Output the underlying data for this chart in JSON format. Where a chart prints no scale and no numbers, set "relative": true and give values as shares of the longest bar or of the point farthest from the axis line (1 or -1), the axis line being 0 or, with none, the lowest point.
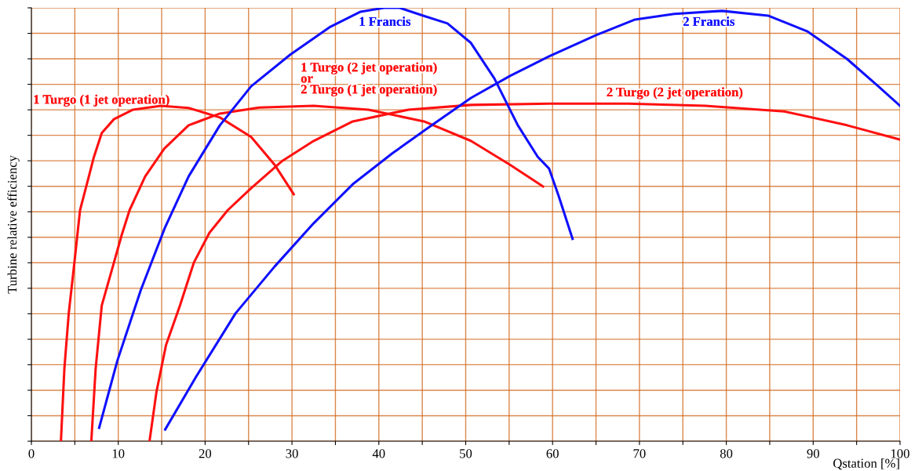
{
  "chart_data": {
    "type": "line",
    "relative": true,
    "xlabel": "Qstation [%]",
    "ylabel": "Turbine relative efficiency",
    "xlim": [
      0,
      100
    ],
    "xticks": [
      0,
      {
        "value": 5,
        "label": null
      },
      10,
      {
        "value": 15,
        "label": null
      },
      20,
      {
        "value": 25,
        "label": null
      },
      30,
      {
        "value": 35,
        "label": null
      },
      40,
      {
        "value": 45,
        "label": null
      },
      50,
      {
        "value": 55,
        "label": null
      },
      60,
      {
        "value": 65,
        "label": null
      },
      70,
      {
        "value": 75,
        "label": null
      },
      80,
      {
        "value": 85,
        "label": null
      },
      90,
      {
        "value": 95,
        "label": null
      },
      100
    ],
    "grid": true,
    "legend": false,
    "marker": "none",
    "line_style": "solid",
    "series": [
      {
        "name": "1 Turgo (1 jet operation)",
        "color": "#ff1010",
        "x": [
          3.4,
          3.8,
          4.3,
          5.0,
          5.6,
          6.5,
          7.2,
          8.1,
          9.5,
          11.7,
          14.9,
          18.1,
          21.7,
          25.3,
          28.0,
          30.2
        ],
        "values": [
          0,
          0.168,
          0.295,
          0.421,
          0.533,
          0.602,
          0.656,
          0.711,
          0.743,
          0.765,
          0.774,
          0.769,
          0.747,
          0.702,
          0.638,
          0.57
        ]
      },
      {
        "name": "1 Turgo (2 jet operation)\nor\n2 Turgo (1 jet operation)",
        "color": "#ff1010",
        "x": [
          6.9,
          7.4,
          8.1,
          9.5,
          10.4,
          11.3,
          13.1,
          15.3,
          18.1,
          21.7,
          26.2,
          32.5,
          38.8,
          45.2,
          50.6,
          55.1,
          58.9
        ],
        "values": [
          0,
          0.168,
          0.313,
          0.412,
          0.476,
          0.533,
          0.611,
          0.675,
          0.729,
          0.756,
          0.77,
          0.774,
          0.765,
          0.738,
          0.693,
          0.638,
          0.588
        ]
      },
      {
        "name": "2 Turgo (2 jet operation)",
        "color": "#ff1010",
        "x": [
          13.6,
          14.4,
          15.5,
          17.1,
          18.7,
          20.5,
          22.6,
          25.3,
          28.9,
          32.5,
          37.0,
          43.4,
          50.6,
          59.6,
          68.7,
          77.6,
          86.7,
          93.9,
          100
        ],
        "values": [
          0,
          0.114,
          0.222,
          0.313,
          0.412,
          0.481,
          0.533,
          0.584,
          0.647,
          0.693,
          0.738,
          0.765,
          0.776,
          0.779,
          0.779,
          0.774,
          0.761,
          0.729,
          0.696
        ]
      },
      {
        "name": "1 Francis",
        "color": "#1010ff",
        "x": [
          7.8,
          9.9,
          12.6,
          15.4,
          18.1,
          21.7,
          25.3,
          29.8,
          34.3,
          37.9,
          40.6,
          42.4,
          45.1,
          47.9,
          50.6,
          53.3,
          56.0,
          58.3,
          59.6,
          60.7,
          62.3
        ],
        "values": [
          0.031,
          0.186,
          0.349,
          0.494,
          0.611,
          0.729,
          0.819,
          0.892,
          0.955,
          0.991,
          1.0,
          1.0,
          0.982,
          0.964,
          0.919,
          0.837,
          0.729,
          0.656,
          0.629,
          0.566,
          0.467
        ]
      },
      {
        "name": "2 Francis",
        "color": "#1010ff",
        "x": [
          15.4,
          19.0,
          23.5,
          28.0,
          32.5,
          37.0,
          41.6,
          46.1,
          50.6,
          55.1,
          59.6,
          65.0,
          69.5,
          74.0,
          79.5,
          84.8,
          89.3,
          93.9,
          97.5,
          100
        ],
        "values": [
          0.027,
          0.15,
          0.295,
          0.403,
          0.503,
          0.593,
          0.665,
          0.729,
          0.792,
          0.843,
          0.888,
          0.937,
          0.973,
          0.986,
          0.993,
          0.982,
          0.946,
          0.882,
          0.819,
          0.774
        ]
      }
    ]
  }
}
